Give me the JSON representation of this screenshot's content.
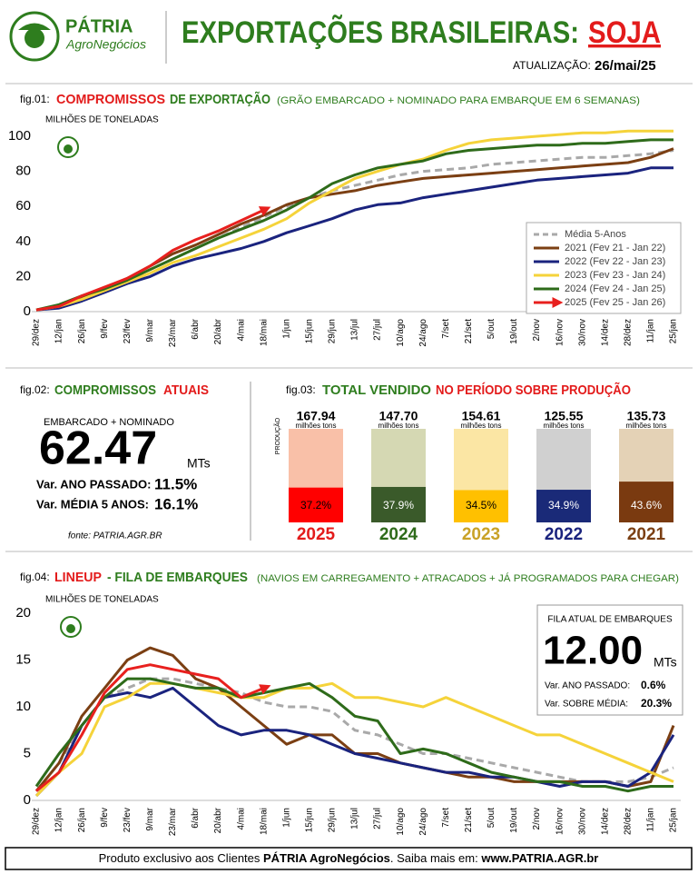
{
  "header": {
    "brand": "PÁTRIA",
    "brand_sub": "AgroNegócios",
    "title": "EXPORTAÇÕES BRASILEIRAS:",
    "title_highlight": "SOJA",
    "update_label": "ATUALIZAÇÃO:",
    "update_date": "26/mai/25"
  },
  "fig01": {
    "label": "fig.01:",
    "title_red": "COMPROMISSOS",
    "title_green": "DE EXPORTAÇÃO",
    "subtitle": "(GRÃO EMBARCADO + NOMINADO PARA EMBARQUE EM 6 SEMANAS)"
  },
  "fig02": {
    "label": "fig.02:",
    "title_green": "COMPROMISSOS",
    "title_red": "ATUAIS",
    "caption": "EMBARCADO + NOMINADO",
    "value": "62.47",
    "unit": "MTs",
    "var1_label": "Var. ANO PASSADO:",
    "var1": "11.5%",
    "var2_label": "Var. MÉDIA 5 ANOS:",
    "var2": "16.1%",
    "source": "fonte: PATRIA.AGR.BR"
  },
  "fig03": {
    "label": "fig.03:",
    "title_green": "TOTAL VENDIDO",
    "title_red": "NO PERÍODO SOBRE PRODUÇÃO",
    "axis_label": "PRODUÇÃO",
    "unit": "milhões tons"
  },
  "fig04": {
    "label": "fig.04:",
    "title_red": "LINEUP",
    "title_green": "- FILA DE EMBARQUES",
    "subtitle": "(NAVIOS EM CARREGAMENTO + ATRACADOS + JÁ PROGRAMADOS PARA CHEGAR)",
    "box_title": "FILA ATUAL DE EMBARQUES",
    "value": "12.00",
    "unit": "MTs",
    "var1_label": "Var. ANO PASSADO:",
    "var1": "0.6%",
    "var2_label": "Var. SOBRE MÉDIA:",
    "var2": "20.3%"
  },
  "footer": {
    "text1": "Produto exclusivo aos Clientes ",
    "brand": "PÁTRIA AgroNegócios",
    "text2": ".  Saiba mais em: ",
    "url": "www.PATRIA.AGR.br"
  },
  "chart_data": [
    {
      "type": "line",
      "ylabel": "MILHÕES DE TONELADAS",
      "legend": "lower right",
      "categories": [
        "29/dez",
        "12/jan",
        "26/jan",
        "9/fev",
        "23/fev",
        "9/mar",
        "23/mar",
        "6/abr",
        "20/abr",
        "4/mai",
        "18/mai",
        "1/jun",
        "15/jun",
        "29/jun",
        "13/jul",
        "27/jul",
        "10/ago",
        "24/ago",
        "7/set",
        "21/set",
        "5/out",
        "19/out",
        "2/nov",
        "16/nov",
        "30/nov",
        "14/dez",
        "28/dez",
        "11/jan",
        "25/jan"
      ],
      "ylim": [
        0,
        105
      ],
      "yticks": [
        0,
        20,
        40,
        60,
        80,
        100
      ],
      "grid": false,
      "series": [
        {
          "name": "Média 5-Anos",
          "color": "#a9a9a9",
          "dashed": true,
          "values": [
            1,
            3,
            7,
            12,
            18,
            24,
            30,
            36,
            42,
            48,
            54,
            60,
            65,
            69,
            72,
            75,
            78,
            80,
            81,
            82,
            84,
            85,
            86,
            87,
            88,
            88,
            89,
            90,
            92
          ]
        },
        {
          "name": "2021 (Fev 21 - Jan 22)",
          "color": "#7b3f13",
          "values": [
            1,
            3,
            8,
            13,
            19,
            26,
            33,
            38,
            44,
            50,
            55,
            61,
            65,
            67,
            69,
            72,
            74,
            76,
            77,
            78,
            79,
            80,
            81,
            82,
            83,
            84,
            85,
            88,
            93
          ]
        },
        {
          "name": "2022 (Fev 22 - Jan 23)",
          "color": "#1a237e",
          "values": [
            1,
            2,
            6,
            11,
            16,
            20,
            26,
            30,
            33,
            36,
            40,
            45,
            49,
            53,
            58,
            61,
            62,
            65,
            67,
            69,
            71,
            73,
            75,
            76,
            77,
            78,
            79,
            82,
            82
          ]
        },
        {
          "name": "2023 (Fev 23 - Jan 24)",
          "color": "#f5d33a",
          "values": [
            1,
            3,
            7,
            12,
            17,
            22,
            28,
            32,
            37,
            42,
            47,
            53,
            62,
            69,
            76,
            80,
            84,
            87,
            92,
            96,
            98,
            99,
            100,
            101,
            102,
            102,
            103,
            103,
            103
          ]
        },
        {
          "name": "2024 (Fev 24 - Jan 25)",
          "color": "#2e6b1a",
          "values": [
            1,
            4,
            9,
            13,
            18,
            24,
            30,
            36,
            42,
            47,
            52,
            58,
            65,
            73,
            78,
            82,
            84,
            86,
            90,
            92,
            93,
            94,
            95,
            95,
            96,
            96,
            97,
            98,
            98
          ]
        },
        {
          "name": "2025 (Fev 25 - Jan 26)",
          "color": "#e8201e",
          "arrow": true,
          "values": [
            1,
            3,
            9,
            14,
            19,
            26,
            35,
            41,
            46,
            52,
            58,
            null,
            null,
            null,
            null,
            null,
            null,
            null,
            null,
            null,
            null,
            null,
            null,
            null,
            null,
            null,
            null,
            null,
            null
          ]
        }
      ]
    },
    {
      "type": "bar",
      "categories": [
        "2025",
        "2024",
        "2023",
        "2022",
        "2021"
      ],
      "category_colors": [
        "#e31b1b",
        "#2e6b1a",
        "#c9a227",
        "#1a237e",
        "#7b3f13"
      ],
      "series": [
        {
          "values": [
            167.94,
            147.7,
            154.61,
            125.55,
            135.73
          ],
          "value_labels": [
            "167.94",
            "147.70",
            "154.61",
            "125.55",
            "135.73"
          ],
          "colors": [
            "#f9c0a8",
            "#d5d8b3",
            "#fbe6a4",
            "#d0d0d0",
            "#e4d2b6"
          ]
        },
        {
          "values": [
            37.2,
            37.9,
            34.5,
            34.9,
            43.6
          ],
          "value_labels": [
            "37.2%",
            "37.9%",
            "34.5%",
            "34.9%",
            "43.6%"
          ],
          "colors": [
            "#ff0000",
            "#3a5a2a",
            "#ffc000",
            "#1a2a78",
            "#7a3a10"
          ],
          "label_colors": [
            "#000000",
            "#ffffff",
            "#000000",
            "#ffffff",
            "#ffffff"
          ]
        }
      ]
    },
    {
      "type": "line",
      "ylabel": "MILHÕES DE TONELADAS",
      "categories": [
        "29/dez",
        "12/jan",
        "26/jan",
        "9/fev",
        "23/fev",
        "9/mar",
        "23/mar",
        "6/abr",
        "20/abr",
        "4/mai",
        "18/mai",
        "1/jun",
        "15/jun",
        "29/jun",
        "13/jul",
        "27/jul",
        "10/ago",
        "24/ago",
        "7/set",
        "21/set",
        "5/out",
        "19/out",
        "2/nov",
        "16/nov",
        "30/nov",
        "14/dez",
        "28/dez",
        "11/jan",
        "25/jan"
      ],
      "ylim": [
        0,
        21
      ],
      "yticks": [
        0,
        5,
        10,
        15,
        20
      ],
      "grid": false,
      "series": [
        {
          "color": "#a9a9a9",
          "dashed": true,
          "values": [
            1,
            4,
            8,
            11,
            12,
            13,
            13,
            12.5,
            12,
            11.5,
            10.5,
            10,
            10,
            9.5,
            7.5,
            7,
            6,
            5,
            5,
            4.5,
            4,
            3.5,
            3,
            2.5,
            2,
            2,
            2,
            2.5,
            3.5
          ]
        },
        {
          "color": "#7b3f13",
          "values": [
            1,
            4,
            9,
            12,
            15,
            16.3,
            15.5,
            13,
            12,
            10,
            8,
            6,
            7,
            7,
            5,
            5,
            4,
            3.5,
            3,
            2.5,
            2.5,
            2,
            2,
            2,
            2,
            2,
            1.5,
            2,
            8
          ]
        },
        {
          "color": "#1a237e",
          "values": [
            0.5,
            3,
            8,
            11,
            11.5,
            11,
            12,
            10,
            8,
            7,
            7.5,
            7.5,
            7,
            6,
            5,
            4.5,
            4,
            3.5,
            3,
            3,
            2.5,
            2.5,
            2,
            1.5,
            2,
            2,
            1.5,
            3,
            7
          ]
        },
        {
          "color": "#f5d33a",
          "values": [
            0.5,
            3,
            5,
            10,
            11,
            12.5,
            12.5,
            12,
            11.5,
            11,
            11,
            12,
            12,
            12.5,
            11,
            11,
            10.5,
            10,
            11,
            10,
            9,
            8,
            7,
            7,
            6,
            5,
            4,
            3,
            2
          ]
        },
        {
          "color": "#2e6b1a",
          "values": [
            1.5,
            5,
            8,
            11,
            13,
            13,
            12.5,
            12,
            12,
            11,
            11.5,
            12,
            12.5,
            11,
            9,
            8.5,
            5,
            5.5,
            5,
            4,
            3,
            2.5,
            2,
            2,
            1.5,
            1.5,
            1,
            1.5,
            1.5
          ]
        },
        {
          "color": "#e8201e",
          "arrow": true,
          "values": [
            1,
            3,
            7,
            11.5,
            14,
            14.5,
            14,
            13.5,
            13,
            11,
            12,
            null,
            null,
            null,
            null,
            null,
            null,
            null,
            null,
            null,
            null,
            null,
            null,
            null,
            null,
            null,
            null,
            null,
            null
          ]
        }
      ]
    }
  ]
}
